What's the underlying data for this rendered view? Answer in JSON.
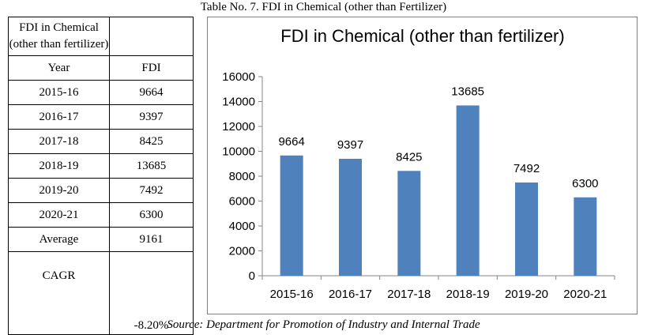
{
  "caption": "Table No. 7. FDI in Chemical (other than Fertilizer)",
  "source": "Source: Department for Promotion of Industry and Internal Trade",
  "table": {
    "title": "FDI in Chemical (other than fertilizer)",
    "col_year": "Year",
    "col_fdi": "FDI",
    "rows": [
      {
        "year": "2015-16",
        "fdi": "9664"
      },
      {
        "year": "2016-17",
        "fdi": "9397"
      },
      {
        "year": "2017-18",
        "fdi": "8425"
      },
      {
        "year": "2018-19",
        "fdi": "13685"
      },
      {
        "year": "2019-20",
        "fdi": "7492"
      },
      {
        "year": "2020-21",
        "fdi": "6300"
      }
    ],
    "average_label": "Average",
    "average_value": "9161",
    "cagr_label": "CAGR",
    "cagr_value": "-8.20%"
  },
  "colors": {
    "bar": "#4f81bd",
    "grid_axis": "#868686"
  },
  "chart_data": {
    "type": "bar",
    "title": "FDI in Chemical (other than fertilizer)",
    "categories": [
      "2015-16",
      "2016-17",
      "2017-18",
      "2018-19",
      "2019-20",
      "2020-21"
    ],
    "values": [
      9664,
      9397,
      8425,
      13685,
      7492,
      6300
    ],
    "data_labels": [
      "9664",
      "9397",
      "8425",
      "13685",
      "7492",
      "6300"
    ],
    "ylim": [
      0,
      16000
    ],
    "yticks": [
      0,
      2000,
      4000,
      6000,
      8000,
      10000,
      12000,
      14000,
      16000
    ],
    "ytick_labels": [
      "0",
      "2000",
      "4000",
      "6000",
      "8000",
      "10000",
      "12000",
      "14000",
      "16000"
    ],
    "grid": false,
    "legend": false
  }
}
